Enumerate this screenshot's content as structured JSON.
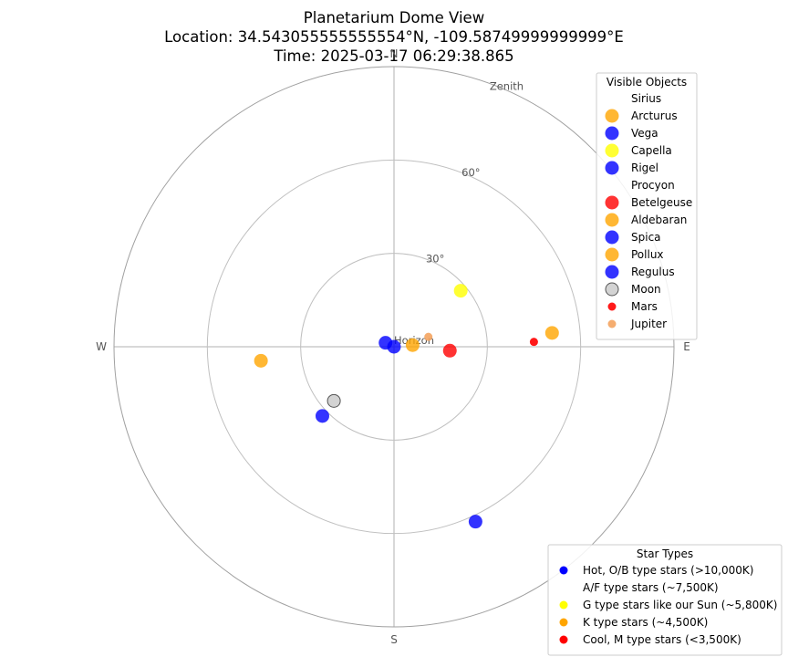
{
  "chart_data": {
    "type": "scatter",
    "projection": "polar-dome",
    "title": "Planetarium Dome View",
    "subtitle_location": "Location: 34.543055555555554°N, -109.58749999999999°E",
    "subtitle_time": "Time: 2025-03-17 06:29:38.865",
    "radial_range": [
      0,
      90
    ],
    "grid": true,
    "ring_labels": [
      {
        "value": 30,
        "text": "30°"
      },
      {
        "value": 60,
        "text": "60°"
      },
      {
        "value": 90,
        "text": "Zenith"
      }
    ],
    "center_label": "Horizon",
    "direction_labels": [
      {
        "text": "N",
        "azimuth": 0
      },
      {
        "text": "E",
        "azimuth": 90
      },
      {
        "text": "S",
        "azimuth": 180
      },
      {
        "text": "W",
        "azimuth": 270
      }
    ],
    "points": [
      {
        "name": "Sirius",
        "azimuth": 0,
        "r": 0,
        "color": "#ffffff",
        "kind": "star",
        "visible": false
      },
      {
        "name": "Arcturus",
        "azimuth": 85,
        "r": 51,
        "color": "#ffa500",
        "kind": "star"
      },
      {
        "name": "Vega",
        "azimuth": 155,
        "r": 62,
        "color": "#0000ff",
        "kind": "star"
      },
      {
        "name": "Capella",
        "azimuth": 50,
        "r": 28,
        "color": "#ffff00",
        "kind": "star"
      },
      {
        "name": "Rigel",
        "azimuth": 295,
        "r": 3,
        "color": "#0000ff",
        "kind": "star"
      },
      {
        "name": "Procyon",
        "azimuth": 0,
        "r": 0,
        "color": "#ffffff",
        "kind": "star",
        "visible": false
      },
      {
        "name": "Betelgeuse",
        "azimuth": 94,
        "r": 18,
        "color": "#ff0000",
        "kind": "star"
      },
      {
        "name": "Aldebaran",
        "azimuth": 85,
        "r": 6,
        "color": "#ffa500",
        "kind": "star"
      },
      {
        "name": "Spica",
        "azimuth": 180,
        "r": 0,
        "color": "#0000ff",
        "kind": "star"
      },
      {
        "name": "Pollux",
        "azimuth": 264,
        "r": 43,
        "color": "#ffa500",
        "kind": "star"
      },
      {
        "name": "Regulus",
        "azimuth": 226,
        "r": 32,
        "color": "#0000ff",
        "kind": "star"
      },
      {
        "name": "Moon",
        "azimuth": 228,
        "r": 26,
        "color": "#d3d3d3",
        "kind": "moon"
      },
      {
        "name": "Mars",
        "azimuth": 88,
        "r": 45,
        "color": "#ff0000",
        "kind": "planet"
      },
      {
        "name": "Jupiter",
        "azimuth": 74,
        "r": 11.5,
        "color": "#f4a460",
        "kind": "planet"
      }
    ],
    "legend_objects": {
      "title": "Visible Objects",
      "placement": "top-right",
      "entries": [
        {
          "label": "Sirius",
          "color": "#ffffff",
          "marker": "star"
        },
        {
          "label": "Arcturus",
          "color": "#ffa500",
          "marker": "star"
        },
        {
          "label": "Vega",
          "color": "#0000ff",
          "marker": "star"
        },
        {
          "label": "Capella",
          "color": "#ffff00",
          "marker": "star"
        },
        {
          "label": "Rigel",
          "color": "#0000ff",
          "marker": "star"
        },
        {
          "label": "Procyon",
          "color": "#ffffff",
          "marker": "star"
        },
        {
          "label": "Betelgeuse",
          "color": "#ff0000",
          "marker": "star"
        },
        {
          "label": "Aldebaran",
          "color": "#ffa500",
          "marker": "star"
        },
        {
          "label": "Spica",
          "color": "#0000ff",
          "marker": "star"
        },
        {
          "label": "Pollux",
          "color": "#ffa500",
          "marker": "star"
        },
        {
          "label": "Regulus",
          "color": "#0000ff",
          "marker": "star"
        },
        {
          "label": "Moon",
          "color": "#d3d3d3",
          "marker": "moon"
        },
        {
          "label": "Mars",
          "color": "#ff0000",
          "marker": "planet"
        },
        {
          "label": "Jupiter",
          "color": "#f4a460",
          "marker": "planet"
        }
      ]
    },
    "legend_types": {
      "title": "Star Types",
      "placement": "bottom-right",
      "entries": [
        {
          "label": "Hot, O/B type stars (>10,000K)",
          "color": "#0000ff"
        },
        {
          "label": "A/F type stars (~7,500K)",
          "color": "#ffffff"
        },
        {
          "label": "G type stars like our Sun (~5,800K)",
          "color": "#ffff00"
        },
        {
          "label": "K type stars (~4,500K)",
          "color": "#ffa500"
        },
        {
          "label": "Cool, M type stars (<3,500K)",
          "color": "#ff0000"
        }
      ]
    }
  }
}
